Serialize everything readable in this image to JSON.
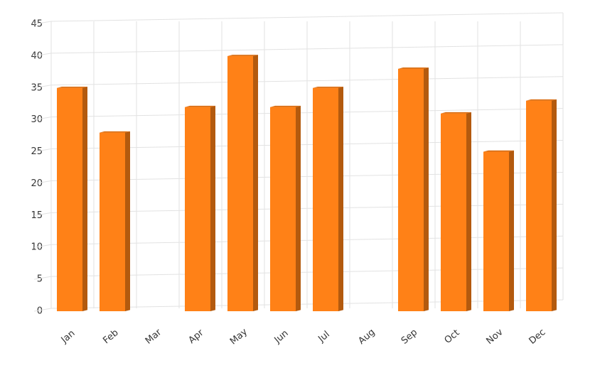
{
  "chart_data": {
    "type": "bar3d",
    "categories": [
      "Jan",
      "Feb",
      "Mar",
      "Apr",
      "May",
      "Jun",
      "Jul",
      "Aug",
      "Sep",
      "Oct",
      "Nov",
      "Dec"
    ],
    "values": [
      35,
      28,
      null,
      32,
      40,
      32,
      35,
      null,
      38,
      31,
      25,
      33
    ],
    "color": "#ff8117",
    "side_color": "#b35a0e",
    "top_color": "#d96a0c",
    "ylim": [
      0,
      45
    ],
    "yticks": [
      0,
      5,
      10,
      15,
      20,
      25,
      30,
      35,
      40,
      45
    ],
    "grid": true
  }
}
